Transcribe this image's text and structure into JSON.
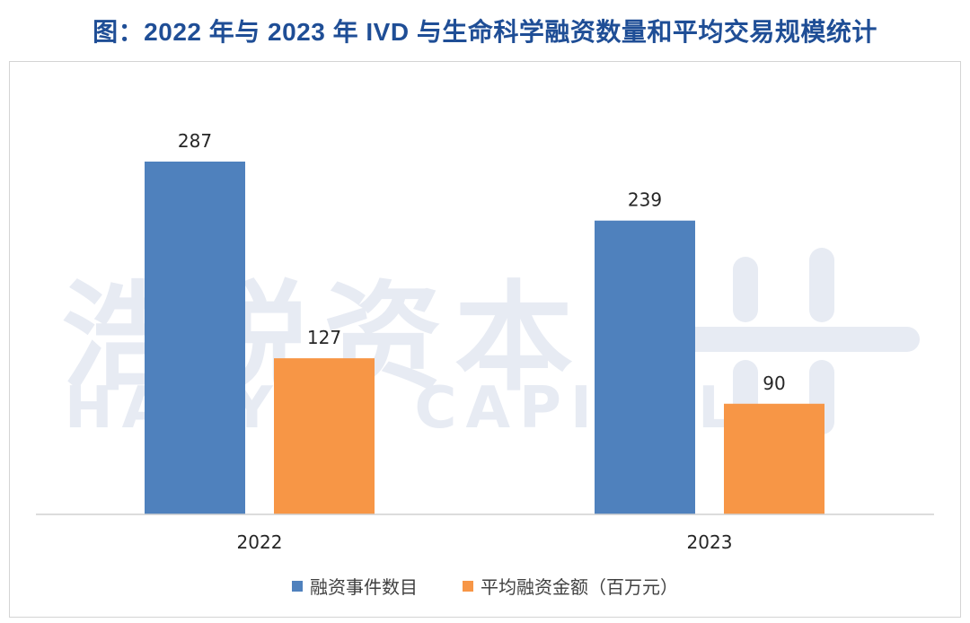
{
  "title": "图：2022 年与 2023 年 IVD 与生命科学融资数量和平均交易规模统计",
  "watermark": {
    "cn": "浩悦资本",
    "en": "HAOYUE CAPITAL",
    "logo_icon": "haoyue-logo-icon"
  },
  "chart_data": {
    "type": "bar",
    "categories": [
      "2022",
      "2023"
    ],
    "series": [
      {
        "name": "融资事件数目",
        "values": [
          287,
          239
        ],
        "color": "#4f81bd"
      },
      {
        "name": "平均融资金额（百万元）",
        "values": [
          127,
          90
        ],
        "color": "#f79646"
      }
    ],
    "ylim": [
      0,
      300
    ],
    "grid": false,
    "legend_position": "bottom",
    "data_labels": true
  }
}
